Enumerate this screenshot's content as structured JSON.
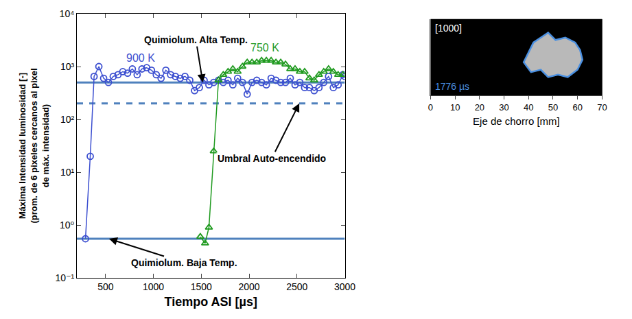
{
  "chart_data": {
    "type": "scatter",
    "log": "y",
    "grid": false,
    "xlabel": "Tiempo ASI [µs]",
    "ylabel": [
      "Máxima Intensidad luminosidad [-]",
      "(prom. de 6 pixeles cercanos al pixel",
      "de máx. intensidad)"
    ],
    "xlim": [
      200,
      3000
    ],
    "xticks": [
      500,
      1000,
      1500,
      2000,
      2500,
      3000
    ],
    "ylim": [
      0.1,
      10000
    ],
    "yticks": [
      {
        "value": 0.1,
        "label": "10⁻¹"
      },
      {
        "value": 1,
        "label": "10⁰"
      },
      {
        "value": 10,
        "label": "10¹"
      },
      {
        "value": 100,
        "label": "10²"
      },
      {
        "value": 1000,
        "label": "10³"
      },
      {
        "value": 10000,
        "label": "10⁴"
      }
    ],
    "series": [
      {
        "name": "900 K",
        "color": "#3c4fd0",
        "marker": "circle-open",
        "x": [
          290,
          340,
          380,
          430,
          480,
          530,
          580,
          630,
          680,
          730,
          780,
          830,
          880,
          930,
          980,
          1030,
          1080,
          1130,
          1180,
          1230,
          1280,
          1330,
          1380,
          1430,
          1480,
          1530,
          1580,
          1630,
          1680,
          1730,
          1780,
          1830,
          1880,
          1930,
          1980,
          2030,
          2080,
          2130,
          2180,
          2230,
          2280,
          2330,
          2380,
          2430,
          2480,
          2530,
          2580,
          2630,
          2680,
          2730,
          2780,
          2830,
          2880,
          2930,
          2980,
          3000
        ],
        "values": [
          0.55,
          20,
          650,
          1000,
          600,
          500,
          650,
          700,
          800,
          750,
          900,
          700,
          900,
          950,
          850,
          700,
          600,
          850,
          700,
          650,
          600,
          650,
          550,
          350,
          400,
          550,
          450,
          500,
          550,
          500,
          550,
          450,
          600,
          500,
          300,
          500,
          550,
          500,
          450,
          600,
          550,
          500,
          500,
          600,
          450,
          500,
          400,
          400,
          350,
          400,
          500,
          650,
          400,
          450,
          700,
          650
        ]
      },
      {
        "name": "750 K",
        "color": "#1f9a1f",
        "marker": "triangle-up-open",
        "x": [
          1490,
          1540,
          1580,
          1630,
          1680,
          1730,
          1780,
          1830,
          1880,
          1930,
          1980,
          2030,
          2080,
          2130,
          2180,
          2230,
          2280,
          2330,
          2380,
          2430,
          2480,
          2530,
          2580,
          2630,
          2680,
          2730,
          2780,
          2830,
          2880,
          2930,
          2980
        ],
        "values": [
          0.6,
          0.45,
          0.9,
          25,
          550,
          700,
          800,
          900,
          800,
          1000,
          1200,
          1200,
          1200,
          1300,
          1300,
          1300,
          1200,
          1200,
          1100,
          900,
          900,
          800,
          800,
          600,
          550,
          700,
          800,
          900,
          800,
          700,
          700
        ]
      }
    ],
    "reference_lines": [
      {
        "label": "Quimiolum. Alta Temp.",
        "value": 500,
        "line_style": "solid",
        "color": "#4f81bd"
      },
      {
        "label": "Umbral Auto-encendido",
        "value": 200,
        "line_style": "dash",
        "color": "#4f81bd"
      },
      {
        "label": "Quimiolum. Baja Temp.",
        "value": 0.55,
        "line_style": "solid",
        "color": "#4f81bd"
      }
    ],
    "inset": {
      "type": "image",
      "frame_label": "[1000]",
      "time_label": "1776 µs",
      "xlabel": "Eje de chorro [mm]",
      "xlim": [
        0,
        70
      ],
      "xticks": [
        0,
        10,
        20,
        30,
        40,
        50,
        60,
        70
      ],
      "ylim": [
        -15.5,
        15.5
      ],
      "tick_labels": "x",
      "color": "#4a8fe0",
      "contour": {
        "x": [
          40,
          38,
          41,
          45,
          48,
          52,
          56,
          60,
          62,
          61,
          59,
          55,
          51,
          48,
          45,
          42,
          40
        ],
        "y": [
          2,
          -2,
          -6,
          -5,
          -8,
          -7,
          -8,
          -5,
          -1,
          3,
          6,
          8,
          7,
          10,
          8,
          6,
          2
        ]
      }
    }
  }
}
